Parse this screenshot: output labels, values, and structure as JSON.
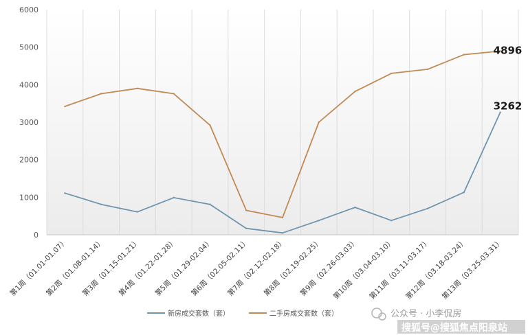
{
  "chart_data": {
    "type": "line",
    "categories": [
      "第1周（01.01-01.07）",
      "第2周（01.08-01.14）",
      "第3周（01.15-01.21）",
      "第4周（01.22-01.28）",
      "第5周（01.29-02.04）",
      "第6周（02.05-02.11）",
      "第7周（02.12-02.18）",
      "第8周（02.19-02.25）",
      "第9周（02.26-03.03）",
      "第10周（03.04-03.10）",
      "第11周（03.11-03.17）",
      "第12周（03.18-03.24）",
      "第13周（03.25-03.31）"
    ],
    "series": [
      {
        "name": "新房成交套数（套）",
        "color": "#6f94ad",
        "values": [
          1110,
          810,
          610,
          990,
          810,
          170,
          50,
          380,
          730,
          380,
          700,
          1130,
          3262
        ]
      },
      {
        "name": "二手房成交套数（套）",
        "color": "#c08a55",
        "values": [
          3420,
          3760,
          3900,
          3760,
          2920,
          650,
          460,
          3000,
          3820,
          4300,
          4410,
          4800,
          4896
        ]
      }
    ],
    "end_labels": [
      "3262",
      "4896"
    ],
    "yticks": [
      "0",
      "1000",
      "2000",
      "3000",
      "4000",
      "5000",
      "6000"
    ],
    "ylim": [
      0,
      6000
    ],
    "legend_position": "bottom",
    "grid": "vertical"
  },
  "watermark": {
    "line1": "公众号 · 小李侃房",
    "line2": "搜狐号@搜狐焦点阳泉站"
  }
}
